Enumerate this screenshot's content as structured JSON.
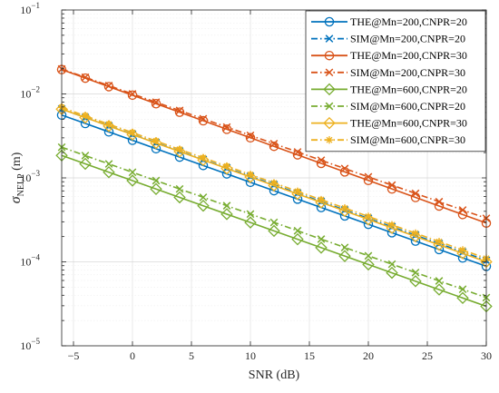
{
  "chart_data": {
    "type": "line",
    "xlabel": "SNR (dB)",
    "ylabel": {
      "main": "σ",
      "sub": "NELP",
      "unit": " (m)"
    },
    "xlim": [
      -6,
      30
    ],
    "ylim": [
      1e-05,
      0.1
    ],
    "yscale": "log",
    "grid": true,
    "legend_position": "top-right",
    "x_ticks": [
      -5,
      0,
      5,
      10,
      15,
      20,
      25,
      30
    ],
    "x_tick_labels": [
      "−5",
      "0",
      "5",
      "10",
      "15",
      "20",
      "25",
      "30"
    ],
    "y_ticks": [
      1e-05,
      0.0001,
      0.001,
      0.01,
      0.1
    ],
    "y_tick_labels": [
      {
        "base": "10",
        "exp": "−5"
      },
      {
        "base": "10",
        "exp": "−4"
      },
      {
        "base": "10",
        "exp": "−3"
      },
      {
        "base": "10",
        "exp": "−2"
      },
      {
        "base": "10",
        "exp": "−1"
      }
    ],
    "x": [
      -6,
      -4,
      -2,
      0,
      2,
      4,
      6,
      8,
      10,
      12,
      14,
      16,
      18,
      20,
      22,
      24,
      26,
      28,
      30
    ],
    "series": [
      {
        "name": "THE@Mn=200,CNPR=20",
        "color": "#0072BD",
        "line": "solid",
        "marker": "circle",
        "start": 0.0056,
        "end": 8.85e-05
      },
      {
        "name": "SIM@Mn=200,CNPR=20",
        "color": "#0072BD",
        "line": "dashdot",
        "marker": "x",
        "start": 0.0066,
        "end": 0.000104
      },
      {
        "name": "THE@Mn=200,CNPR=30",
        "color": "#D95319",
        "line": "solid",
        "marker": "circle",
        "start": 0.0195,
        "end": 0.00029
      },
      {
        "name": "SIM@Mn=200,CNPR=30",
        "color": "#D95319",
        "line": "dashdot",
        "marker": "x",
        "start": 0.0198,
        "end": 0.00033
      },
      {
        "name": "THE@Mn=600,CNPR=20",
        "color": "#77AC30",
        "line": "solid",
        "marker": "diamond",
        "start": 0.00185,
        "end": 2.95e-05
      },
      {
        "name": "SIM@Mn=600,CNPR=20",
        "color": "#77AC30",
        "line": "dashdot",
        "marker": "x",
        "start": 0.00232,
        "end": 3.75e-05
      },
      {
        "name": "THE@Mn=600,CNPR=30",
        "color": "#EDB120",
        "line": "solid",
        "marker": "diamond",
        "start": 0.0066,
        "end": 0.0001
      },
      {
        "name": "SIM@Mn=600,CNPR=30",
        "color": "#EDB120",
        "line": "dashdot",
        "marker": "asterisk",
        "start": 0.0069,
        "end": 0.00011
      }
    ]
  }
}
